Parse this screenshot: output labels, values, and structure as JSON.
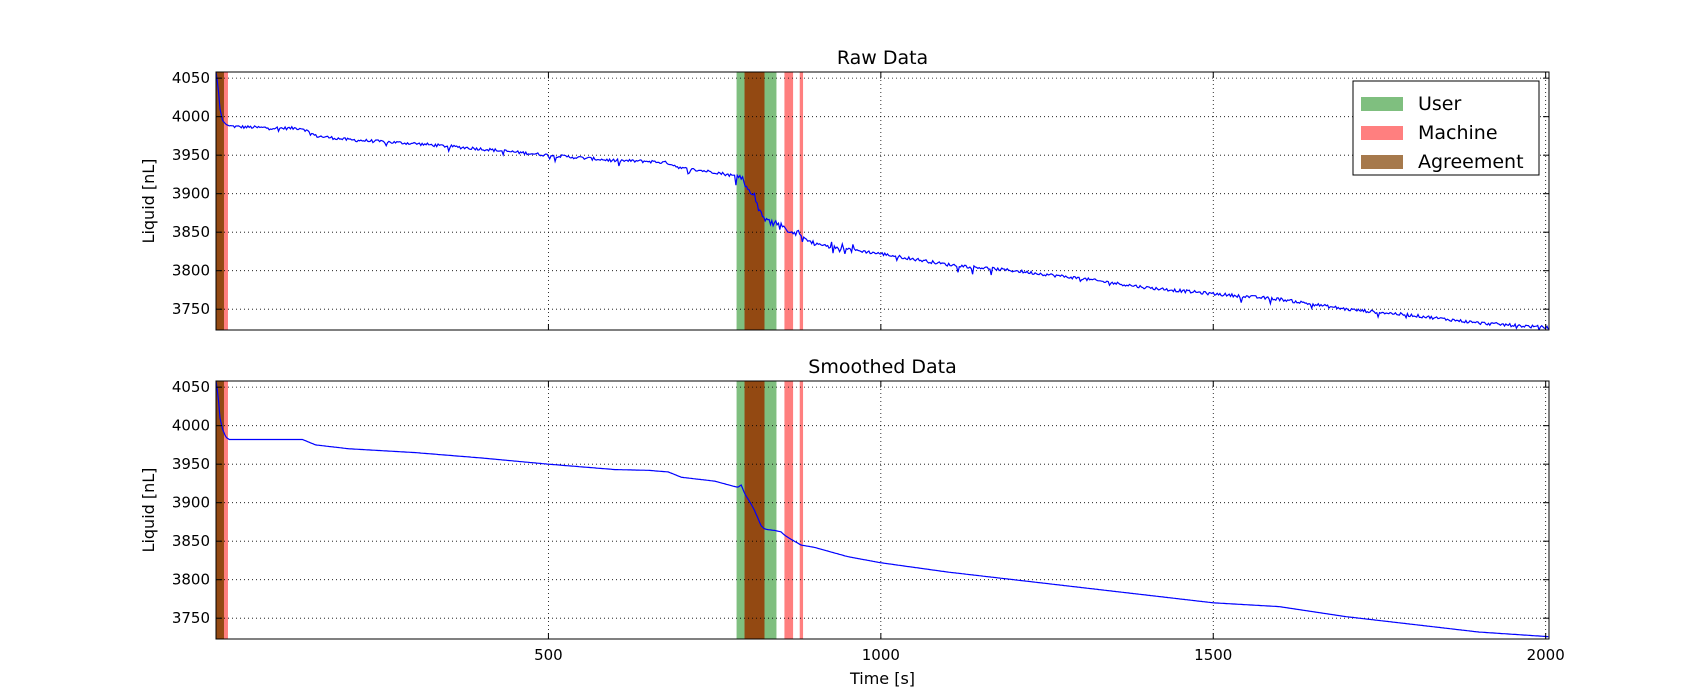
{
  "figure": {
    "x_axis_label": "Time [s]"
  },
  "chart_data": [
    {
      "type": "line",
      "title": "Raw Data",
      "xlabel": "",
      "ylabel": "Liquid [nL]",
      "xlim": [
        0,
        2005
      ],
      "ylim": [
        3723,
        4058
      ],
      "x_ticks": [
        500,
        1000,
        1500,
        2000
      ],
      "y_ticks": [
        3750,
        3800,
        3850,
        3900,
        3950,
        4000,
        4050
      ],
      "grid": true,
      "legend_position": "top-right",
      "series": [
        {
          "color": "#0000ff",
          "noise": "raw",
          "x": [
            0,
            3,
            6,
            10,
            15,
            20,
            30,
            60,
            100,
            130,
            150,
            200,
            300,
            400,
            500,
            600,
            650,
            680,
            700,
            750,
            780,
            785,
            790,
            795,
            800,
            805,
            810,
            815,
            820,
            825,
            830,
            840,
            850,
            855,
            860,
            870,
            880,
            900,
            950,
            1000,
            1100,
            1200,
            1300,
            1400,
            1500,
            1600,
            1700,
            1800,
            1900,
            2005
          ],
          "y": [
            4058,
            4040,
            4010,
            3995,
            3990,
            3988,
            3987,
            3986,
            3985,
            3985,
            3975,
            3970,
            3965,
            3958,
            3950,
            3943,
            3942,
            3940,
            3933,
            3928,
            3923,
            3922,
            3925,
            3915,
            3905,
            3900,
            3895,
            3885,
            3875,
            3866,
            3865,
            3864,
            3860,
            3855,
            3850,
            3848,
            3845,
            3835,
            3828,
            3822,
            3808,
            3800,
            3790,
            3778,
            3770,
            3763,
            3750,
            3742,
            3732,
            3726
          ]
        }
      ]
    },
    {
      "type": "line",
      "title": "Smoothed Data",
      "xlabel": "Time [s]",
      "ylabel": "Liquid [nL]",
      "xlim": [
        0,
        2005
      ],
      "ylim": [
        3723,
        4058
      ],
      "x_ticks": [
        500,
        1000,
        1500,
        2000
      ],
      "y_ticks": [
        3750,
        3800,
        3850,
        3900,
        3950,
        4000,
        4050
      ],
      "grid": true,
      "series": [
        {
          "color": "#0000ff",
          "noise": "smooth",
          "x": [
            0,
            3,
            6,
            10,
            15,
            20,
            30,
            60,
            100,
            130,
            150,
            200,
            300,
            400,
            500,
            600,
            650,
            680,
            700,
            750,
            780,
            785,
            790,
            795,
            800,
            805,
            810,
            815,
            820,
            825,
            830,
            840,
            850,
            855,
            860,
            870,
            880,
            900,
            950,
            1000,
            1100,
            1200,
            1300,
            1400,
            1500,
            1600,
            1700,
            1800,
            1900,
            2005
          ],
          "y": [
            4058,
            4040,
            4010,
            3995,
            3985,
            3982,
            3982,
            3982,
            3982,
            3982,
            3975,
            3970,
            3965,
            3958,
            3950,
            3943,
            3942,
            3940,
            3933,
            3928,
            3921,
            3920,
            3923,
            3912,
            3905,
            3898,
            3890,
            3880,
            3870,
            3866,
            3865,
            3864,
            3862,
            3858,
            3855,
            3850,
            3845,
            3842,
            3830,
            3822,
            3810,
            3800,
            3790,
            3780,
            3770,
            3765,
            3752,
            3742,
            3732,
            3726
          ]
        }
      ]
    }
  ],
  "regions": {
    "user": [
      [
        0,
        12
      ],
      [
        783,
        843
      ]
    ],
    "machine": [
      [
        0,
        18
      ],
      [
        795,
        825
      ],
      [
        855,
        868
      ],
      [
        878,
        883
      ]
    ],
    "agreement": [
      [
        0,
        12
      ],
      [
        795,
        825
      ]
    ]
  },
  "legend": {
    "entries": [
      {
        "key": "user",
        "label": "User",
        "color": "#008000",
        "alpha": 0.5
      },
      {
        "key": "machine",
        "label": "Machine",
        "color": "#ff0000",
        "alpha": 0.5
      },
      {
        "key": "agreement",
        "label": "Agreement",
        "color": "#804000",
        "alpha": 0.7
      }
    ]
  }
}
